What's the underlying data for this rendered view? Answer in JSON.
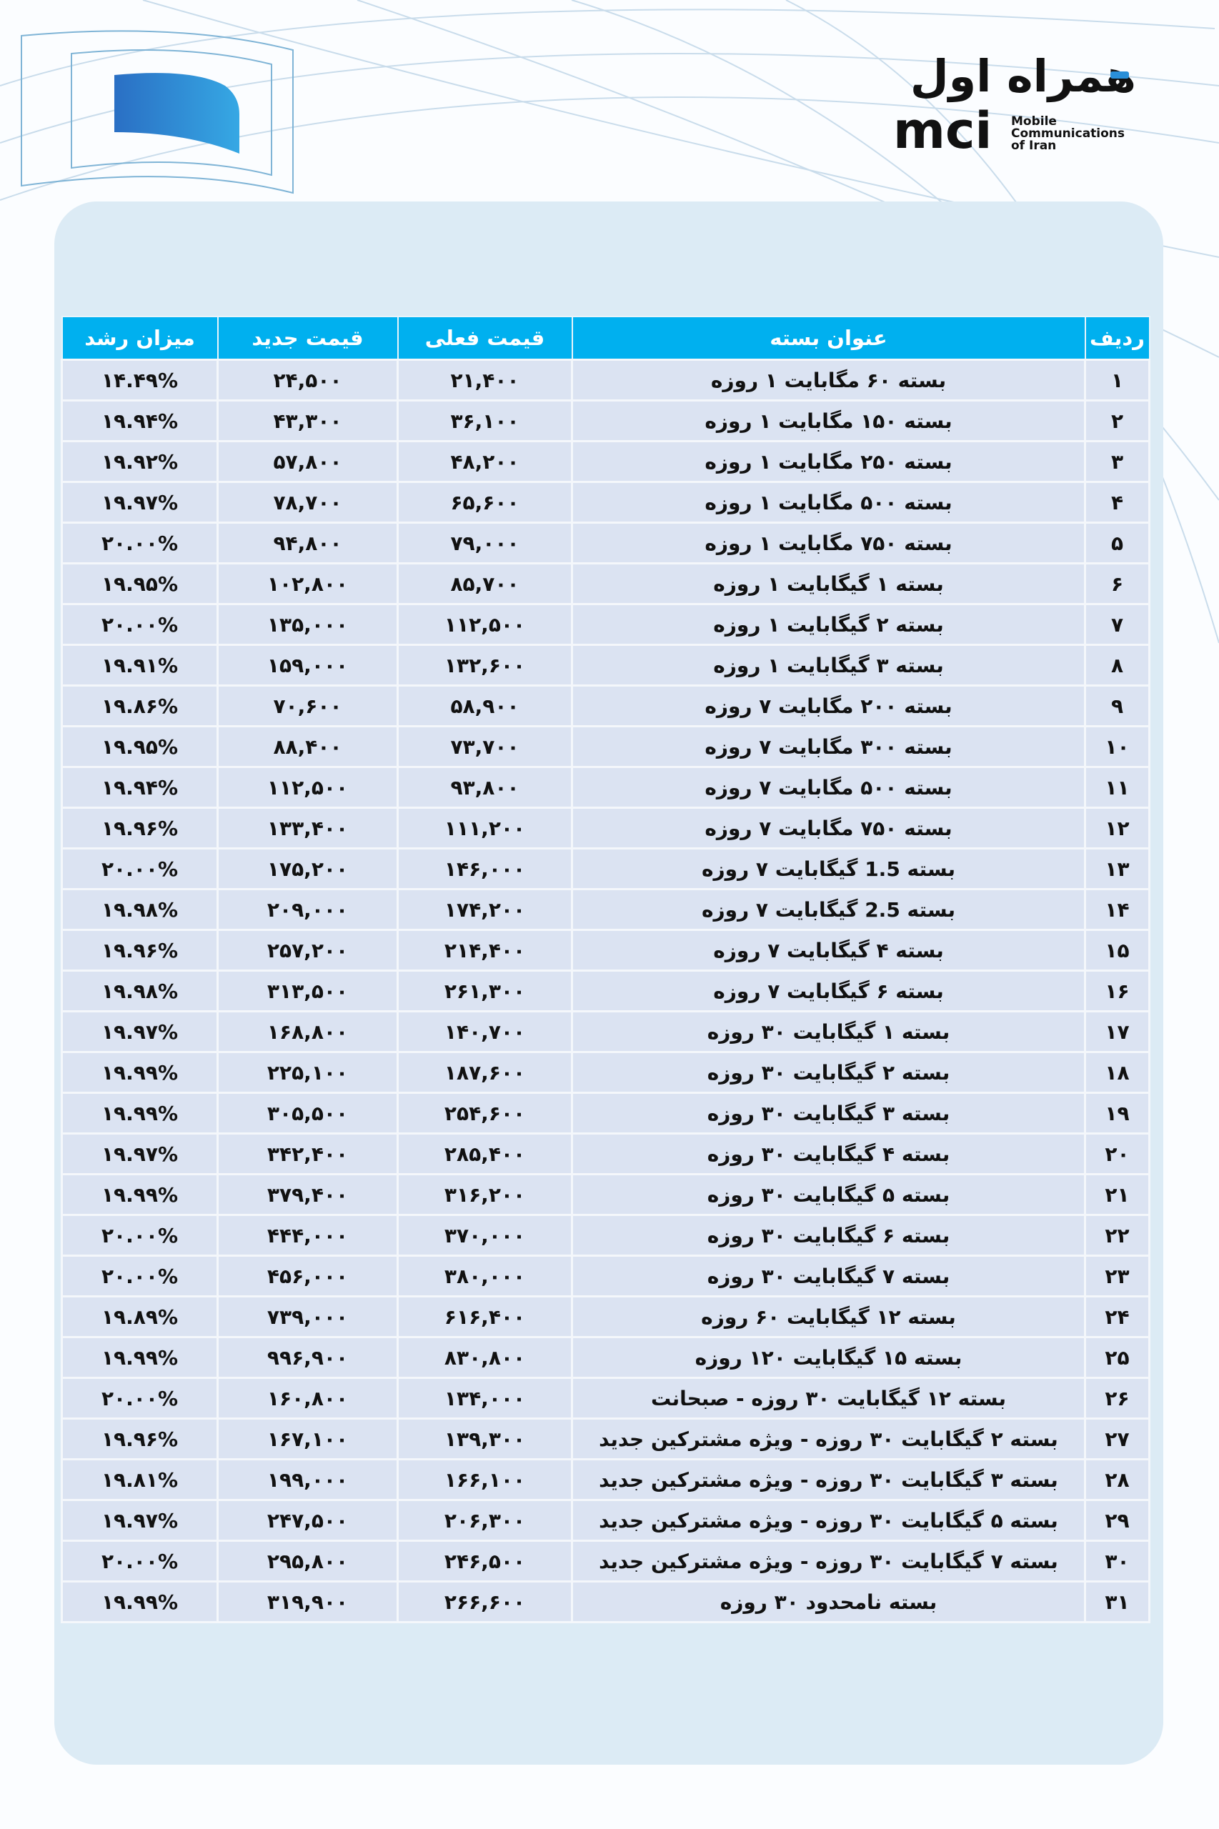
{
  "brand": {
    "name_fa": "همراه اول",
    "name_short": "mci",
    "tagline": "Mobile Communications of Iran",
    "accent_color": "#2a8fd8",
    "header_color": "#00b0ef"
  },
  "table": {
    "headers": {
      "row": "ردیف",
      "title": "عنوان بسته",
      "current_price": "قیمت فعلی",
      "new_price": "قیمت جدید",
      "growth": "میزان رشد"
    },
    "rows": [
      {
        "row": "۱",
        "title": "بسته ۶۰ مگابایت ۱ روزه",
        "current": "۲۱,۴۰۰",
        "new": "۲۴,۵۰۰",
        "growth": "۱۴.۴۹%"
      },
      {
        "row": "۲",
        "title": "بسته ۱۵۰ مگابایت ۱ روزه",
        "current": "۳۶,۱۰۰",
        "new": "۴۳,۳۰۰",
        "growth": "۱۹.۹۴%"
      },
      {
        "row": "۳",
        "title": "بسته ۲۵۰ مگابایت ۱ روزه",
        "current": "۴۸,۲۰۰",
        "new": "۵۷,۸۰۰",
        "growth": "۱۹.۹۲%"
      },
      {
        "row": "۴",
        "title": "بسته ۵۰۰ مگابایت ۱ روزه",
        "current": "۶۵,۶۰۰",
        "new": "۷۸,۷۰۰",
        "growth": "۱۹.۹۷%"
      },
      {
        "row": "۵",
        "title": "بسته ۷۵۰ مگابایت ۱ روزه",
        "current": "۷۹,۰۰۰",
        "new": "۹۴,۸۰۰",
        "growth": "۲۰.۰۰%"
      },
      {
        "row": "۶",
        "title": "بسته ۱ گیگابایت ۱ روزه",
        "current": "۸۵,۷۰۰",
        "new": "۱۰۲,۸۰۰",
        "growth": "۱۹.۹۵%"
      },
      {
        "row": "۷",
        "title": "بسته ۲ گیگابایت ۱ روزه",
        "current": "۱۱۲,۵۰۰",
        "new": "۱۳۵,۰۰۰",
        "growth": "۲۰.۰۰%"
      },
      {
        "row": "۸",
        "title": "بسته ۳ گیگابایت ۱ روزه",
        "current": "۱۳۲,۶۰۰",
        "new": "۱۵۹,۰۰۰",
        "growth": "۱۹.۹۱%"
      },
      {
        "row": "۹",
        "title": "بسته ۲۰۰ مگابایت ۷ روزه",
        "current": "۵۸,۹۰۰",
        "new": "۷۰,۶۰۰",
        "growth": "۱۹.۸۶%"
      },
      {
        "row": "۱۰",
        "title": "بسته ۳۰۰ مگابایت ۷ روزه",
        "current": "۷۳,۷۰۰",
        "new": "۸۸,۴۰۰",
        "growth": "۱۹.۹۵%"
      },
      {
        "row": "۱۱",
        "title": "بسته ۵۰۰ مگابایت ۷ روزه",
        "current": "۹۳,۸۰۰",
        "new": "۱۱۲,۵۰۰",
        "growth": "۱۹.۹۴%"
      },
      {
        "row": "۱۲",
        "title": "بسته ۷۵۰ مگابایت ۷ روزه",
        "current": "۱۱۱,۲۰۰",
        "new": "۱۳۳,۴۰۰",
        "growth": "۱۹.۹۶%"
      },
      {
        "row": "۱۳",
        "title": "بسته 1.5 گیگابایت ۷ روزه",
        "current": "۱۴۶,۰۰۰",
        "new": "۱۷۵,۲۰۰",
        "growth": "۲۰.۰۰%"
      },
      {
        "row": "۱۴",
        "title": "بسته 2.5 گیگابایت ۷ روزه",
        "current": "۱۷۴,۲۰۰",
        "new": "۲۰۹,۰۰۰",
        "growth": "۱۹.۹۸%"
      },
      {
        "row": "۱۵",
        "title": "بسته ۴ گیگابایت ۷ روزه",
        "current": "۲۱۴,۴۰۰",
        "new": "۲۵۷,۲۰۰",
        "growth": "۱۹.۹۶%"
      },
      {
        "row": "۱۶",
        "title": "بسته ۶ گیگابایت ۷ روزه",
        "current": "۲۶۱,۳۰۰",
        "new": "۳۱۳,۵۰۰",
        "growth": "۱۹.۹۸%"
      },
      {
        "row": "۱۷",
        "title": "بسته ۱ گیگابایت ۳۰ روزه",
        "current": "۱۴۰,۷۰۰",
        "new": "۱۶۸,۸۰۰",
        "growth": "۱۹.۹۷%"
      },
      {
        "row": "۱۸",
        "title": "بسته ۲ گیگابایت ۳۰ روزه",
        "current": "۱۸۷,۶۰۰",
        "new": "۲۲۵,۱۰۰",
        "growth": "۱۹.۹۹%"
      },
      {
        "row": "۱۹",
        "title": "بسته ۳ گیگابایت ۳۰ روزه",
        "current": "۲۵۴,۶۰۰",
        "new": "۳۰۵,۵۰۰",
        "growth": "۱۹.۹۹%"
      },
      {
        "row": "۲۰",
        "title": "بسته ۴ گیگابایت ۳۰ روزه",
        "current": "۲۸۵,۴۰۰",
        "new": "۳۴۲,۴۰۰",
        "growth": "۱۹.۹۷%"
      },
      {
        "row": "۲۱",
        "title": "بسته ۵ گیگابایت ۳۰ روزه",
        "current": "۳۱۶,۲۰۰",
        "new": "۳۷۹,۴۰۰",
        "growth": "۱۹.۹۹%"
      },
      {
        "row": "۲۲",
        "title": "بسته ۶ گیگابایت ۳۰ روزه",
        "current": "۳۷۰,۰۰۰",
        "new": "۴۴۴,۰۰۰",
        "growth": "۲۰.۰۰%"
      },
      {
        "row": "۲۳",
        "title": "بسته ۷ گیگابایت ۳۰ روزه",
        "current": "۳۸۰,۰۰۰",
        "new": "۴۵۶,۰۰۰",
        "growth": "۲۰.۰۰%"
      },
      {
        "row": "۲۴",
        "title": "بسته ۱۲ گیگابایت ۶۰ روزه",
        "current": "۶۱۶,۴۰۰",
        "new": "۷۳۹,۰۰۰",
        "growth": "۱۹.۸۹%"
      },
      {
        "row": "۲۵",
        "title": "بسته ۱۵ گیگابایت ۱۲۰ روزه",
        "current": "۸۳۰,۸۰۰",
        "new": "۹۹۶,۹۰۰",
        "growth": "۱۹.۹۹%"
      },
      {
        "row": "۲۶",
        "title": "بسته ۱۲ گیگابایت ۳۰ روزه - صبحانت",
        "current": "۱۳۴,۰۰۰",
        "new": "۱۶۰,۸۰۰",
        "growth": "۲۰.۰۰%"
      },
      {
        "row": "۲۷",
        "title": "بسته ۲ گیگابایت ۳۰ روزه - ویژه مشترکین جدید",
        "current": "۱۳۹,۳۰۰",
        "new": "۱۶۷,۱۰۰",
        "growth": "۱۹.۹۶%"
      },
      {
        "row": "۲۸",
        "title": "بسته ۳ گیگابایت ۳۰ روزه - ویژه مشترکین جدید",
        "current": "۱۶۶,۱۰۰",
        "new": "۱۹۹,۰۰۰",
        "growth": "۱۹.۸۱%"
      },
      {
        "row": "۲۹",
        "title": "بسته ۵ گیگابایت ۳۰ روزه - ویژه مشترکین جدید",
        "current": "۲۰۶,۳۰۰",
        "new": "۲۴۷,۵۰۰",
        "growth": "۱۹.۹۷%"
      },
      {
        "row": "۳۰",
        "title": "بسته ۷ گیگابایت ۳۰ روزه - ویژه مشترکین جدید",
        "current": "۲۴۶,۵۰۰",
        "new": "۲۹۵,۸۰۰",
        "growth": "۲۰.۰۰%"
      },
      {
        "row": "۳۱",
        "title": "بسته نامحدود ۳۰ روزه",
        "current": "۲۶۶,۶۰۰",
        "new": "۳۱۹,۹۰۰",
        "growth": "۱۹.۹۹%"
      }
    ]
  }
}
